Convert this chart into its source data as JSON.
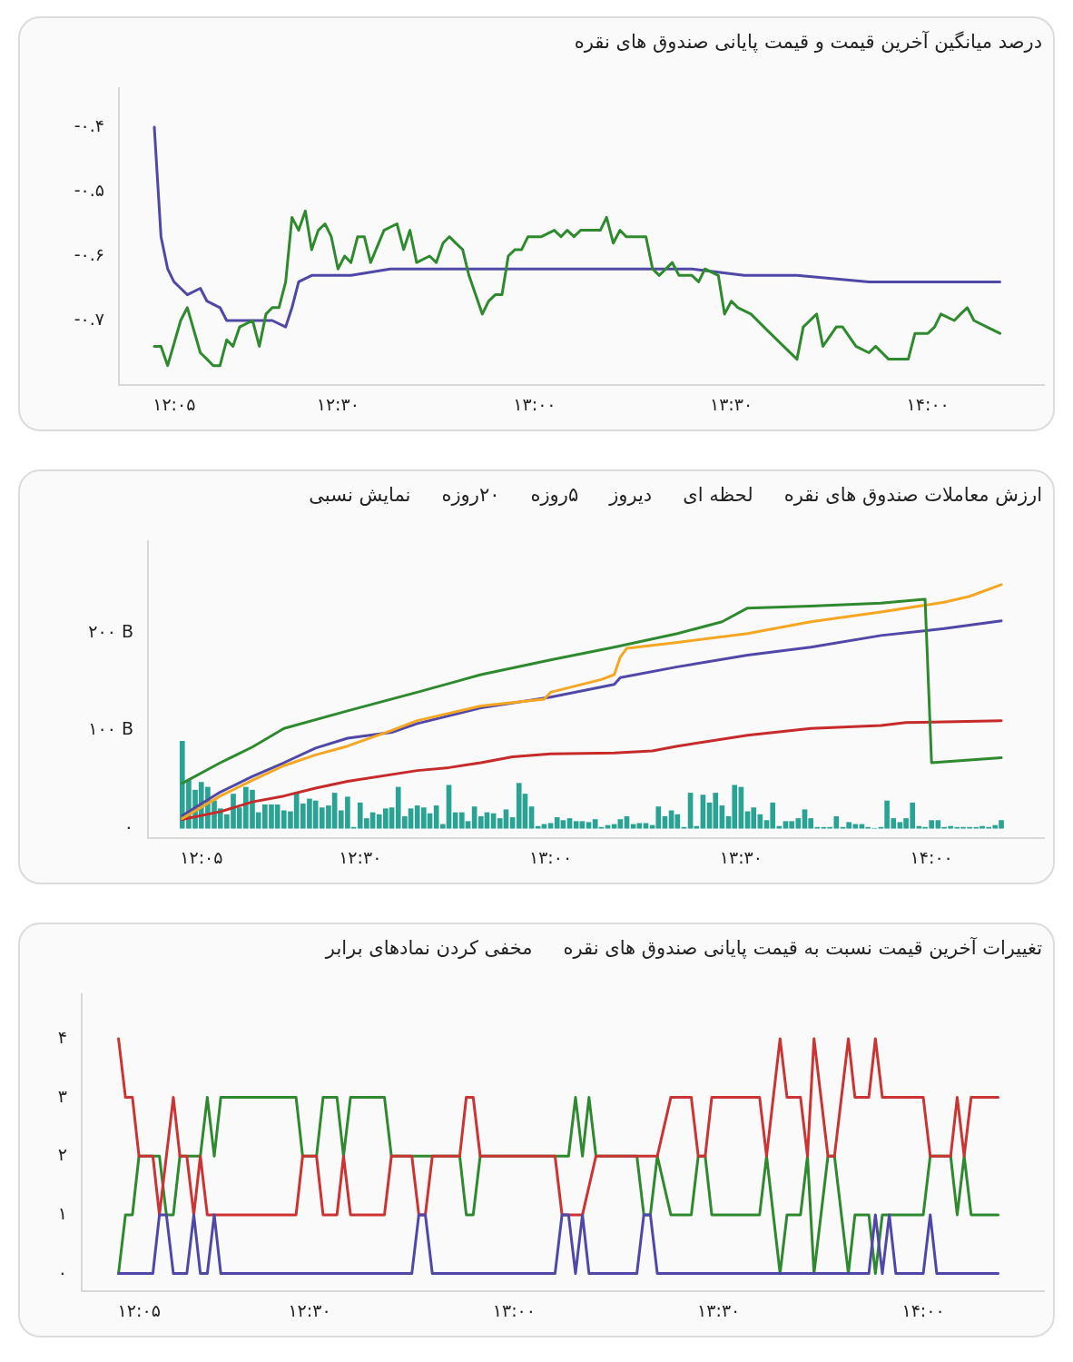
{
  "chart_data": [
    {
      "type": "line",
      "title": "درصد میانگین آخرین قیمت و قیمت پایانی صندوق های نقره",
      "marker": "none",
      "xlim": [
        11.943,
        14.295
      ],
      "xticks": [
        {
          "value": 12.0833,
          "label": "۱۲:۰۵"
        },
        {
          "value": 12.5,
          "label": "۱۲:۳۰"
        },
        {
          "value": 13,
          "label": "۱۳:۰۰"
        },
        {
          "value": 13.5,
          "label": "۱۳:۳۰"
        },
        {
          "value": 14,
          "label": "۱۴:۰۰"
        }
      ],
      "ylim": [
        -0.8,
        -0.34
      ],
      "yticks": [
        {
          "value": -0.7,
          "label": "-۰.۷"
        },
        {
          "value": -0.6,
          "label": "-۰.۶"
        },
        {
          "value": -0.5,
          "label": "-۰.۵"
        },
        {
          "value": -0.4,
          "label": "-۰.۴"
        }
      ],
      "series": [
        {
          "color": "#2f8a2f",
          "x": [
            12.033,
            12.05,
            12.067,
            12.1,
            12.117,
            12.15,
            12.167,
            12.183,
            12.2,
            12.217,
            12.233,
            12.25,
            12.283,
            12.3,
            12.317,
            12.333,
            12.35,
            12.367,
            12.383,
            12.4,
            12.417,
            12.433,
            12.45,
            12.467,
            12.483,
            12.5,
            12.517,
            12.533,
            12.55,
            12.567,
            12.583,
            12.617,
            12.65,
            12.667,
            12.683,
            12.7,
            12.733,
            12.75,
            12.767,
            12.783,
            12.8,
            12.817,
            12.833,
            12.85,
            12.867,
            12.883,
            12.9,
            12.917,
            12.933,
            12.95,
            12.967,
            12.983,
            13.017,
            13.05,
            13.067,
            13.083,
            13.1,
            13.117,
            13.133,
            13.167,
            13.183,
            13.2,
            13.217,
            13.233,
            13.25,
            13.283,
            13.3,
            13.317,
            13.35,
            13.367,
            13.4,
            13.417,
            13.433,
            13.467,
            13.483,
            13.5,
            13.517,
            13.55,
            13.583,
            13.633,
            13.667,
            13.683,
            13.717,
            13.733,
            13.767,
            13.783,
            13.817,
            13.85,
            13.867,
            13.9,
            13.933,
            13.95,
            13.967,
            14.0,
            14.017,
            14.033,
            14.067,
            14.083,
            14.1,
            14.117,
            14.15,
            14.183
          ],
          "values": [
            -0.74,
            -0.74,
            -0.77,
            -0.7,
            -0.68,
            -0.75,
            -0.76,
            -0.77,
            -0.77,
            -0.73,
            -0.74,
            -0.71,
            -0.7,
            -0.74,
            -0.69,
            -0.68,
            -0.68,
            -0.64,
            -0.54,
            -0.56,
            -0.53,
            -0.59,
            -0.56,
            -0.55,
            -0.57,
            -0.62,
            -0.6,
            -0.61,
            -0.57,
            -0.57,
            -0.61,
            -0.56,
            -0.55,
            -0.59,
            -0.56,
            -0.61,
            -0.6,
            -0.61,
            -0.58,
            -0.57,
            -0.58,
            -0.59,
            -0.63,
            -0.66,
            -0.69,
            -0.67,
            -0.66,
            -0.66,
            -0.6,
            -0.59,
            -0.59,
            -0.57,
            -0.57,
            -0.56,
            -0.57,
            -0.56,
            -0.57,
            -0.56,
            -0.56,
            -0.56,
            -0.54,
            -0.58,
            -0.56,
            -0.57,
            -0.57,
            -0.57,
            -0.62,
            -0.63,
            -0.61,
            -0.63,
            -0.63,
            -0.64,
            -0.62,
            -0.63,
            -0.69,
            -0.67,
            -0.68,
            -0.69,
            -0.71,
            -0.74,
            -0.76,
            -0.71,
            -0.69,
            -0.74,
            -0.71,
            -0.71,
            -0.74,
            -0.75,
            -0.74,
            -0.76,
            -0.76,
            -0.76,
            -0.72,
            -0.72,
            -0.71,
            -0.69,
            -0.7,
            -0.69,
            -0.68,
            -0.7,
            -0.71,
            -0.72
          ]
        },
        {
          "color": "#4f48a6",
          "x": [
            12.033,
            12.05,
            12.067,
            12.083,
            12.1,
            12.117,
            12.15,
            12.167,
            12.2,
            12.217,
            12.25,
            12.283,
            12.317,
            12.333,
            12.367,
            12.383,
            12.4,
            12.433,
            12.5,
            12.533,
            12.633,
            12.8,
            12.933,
            13.25,
            13.4,
            13.533,
            13.667,
            13.85,
            14.067,
            14.183
          ],
          "values": [
            -0.4,
            -0.57,
            -0.62,
            -0.64,
            -0.65,
            -0.66,
            -0.65,
            -0.67,
            -0.68,
            -0.7,
            -0.7,
            -0.7,
            -0.7,
            -0.7,
            -0.71,
            -0.68,
            -0.64,
            -0.63,
            -0.63,
            -0.63,
            -0.62,
            -0.62,
            -0.62,
            -0.62,
            -0.62,
            -0.63,
            -0.63,
            -0.64,
            -0.64,
            -0.64
          ]
        }
      ]
    },
    {
      "type": "line",
      "title": "ارزش معاملات صندوق های نقره",
      "annotations": [
        "لحظه ای",
        "دیروز",
        "۵روزه",
        "۲۰روزه",
        "نمایش نسبی"
      ],
      "marker": "none",
      "xlim": [
        11.943,
        14.295
      ],
      "xticks": [
        {
          "value": 12.0833,
          "label": "۱۲:۰۵"
        },
        {
          "value": 12.5,
          "label": "۱۲:۳۰"
        },
        {
          "value": 13,
          "label": "۱۳:۰۰"
        },
        {
          "value": 13.5,
          "label": "۱۳:۳۰"
        },
        {
          "value": 14,
          "label": "۱۴:۰۰"
        }
      ],
      "ylim": [
        -10,
        293
      ],
      "yticks": [
        {
          "value": 0,
          "label": "۰"
        },
        {
          "value": 100,
          "label": "۱۰۰ B"
        },
        {
          "value": 200,
          "label": "۲۰۰ B"
        }
      ],
      "series": [
        {
          "color": "#2f8a2f",
          "x": [
            12.033,
            12.133,
            12.217,
            12.3,
            12.467,
            12.65,
            12.817,
            13.0,
            13.167,
            13.333,
            13.45,
            13.517,
            13.683,
            13.867,
            13.983,
            14.0,
            14.183
          ],
          "values": [
            46,
            67,
            83,
            102,
            120,
            139,
            157,
            172,
            185,
            199,
            211,
            225,
            227,
            230,
            234,
            67,
            72
          ]
        },
        {
          "color": "#f5a623",
          "x": [
            12.033,
            12.133,
            12.217,
            12.3,
            12.383,
            12.467,
            12.583,
            12.65,
            12.817,
            12.983,
            13.0,
            13.133,
            13.167,
            13.183,
            13.2,
            13.333,
            13.517,
            13.683,
            13.867,
            14.033,
            14.1,
            14.183
          ],
          "values": [
            10,
            33,
            49,
            64,
            75,
            84,
            100,
            110,
            125,
            132,
            139,
            152,
            157,
            175,
            184,
            190,
            199,
            211,
            221,
            231,
            237,
            249
          ]
        },
        {
          "color": "#5048a8",
          "x": [
            12.033,
            12.133,
            12.217,
            12.3,
            12.383,
            12.467,
            12.583,
            12.65,
            12.817,
            13.0,
            13.167,
            13.183,
            13.333,
            13.517,
            13.683,
            13.867,
            14.033,
            14.183
          ],
          "values": [
            13,
            37,
            53,
            67,
            82,
            92,
            98,
            107,
            123,
            134,
            147,
            154,
            165,
            177,
            185,
            197,
            204,
            212
          ]
        },
        {
          "color": "#c62a2a",
          "x": [
            12.033,
            12.133,
            12.217,
            12.3,
            12.383,
            12.467,
            12.65,
            12.733,
            12.817,
            12.9,
            13.0,
            13.167,
            13.267,
            13.333,
            13.517,
            13.683,
            13.867,
            13.933,
            14.183
          ],
          "values": [
            9,
            17,
            27,
            33,
            41,
            48,
            59,
            62,
            67,
            73,
            76,
            77,
            79,
            84,
            95,
            102,
            105,
            108,
            110
          ]
        },
        {
          "type": "bar",
          "color": "#2ba394",
          "x": [
            12.033,
            12.05,
            12.067,
            12.083,
            12.1,
            12.117,
            12.133,
            12.15,
            12.167,
            12.183,
            12.2,
            12.217,
            12.233,
            12.25,
            12.267,
            12.283,
            12.3,
            12.317,
            12.333,
            12.35,
            12.367,
            12.383,
            12.4,
            12.417,
            12.433,
            12.45,
            12.467,
            12.483,
            12.5,
            12.517,
            12.533,
            12.55,
            12.567,
            12.583,
            12.6,
            12.617,
            12.633,
            12.65,
            12.667,
            12.683,
            12.7,
            12.717,
            12.733,
            12.75,
            12.767,
            12.783,
            12.8,
            12.817,
            12.833,
            12.85,
            12.867,
            12.883,
            12.9,
            12.917,
            12.933,
            12.95,
            12.967,
            12.983,
            13.0,
            13.017,
            13.033,
            13.05,
            13.067,
            13.083,
            13.1,
            13.117,
            13.133,
            13.15,
            13.167,
            13.183,
            13.2,
            13.217,
            13.233,
            13.25,
            13.267,
            13.283,
            13.3,
            13.317,
            13.333,
            13.35,
            13.367,
            13.383,
            13.4,
            13.417,
            13.433,
            13.45,
            13.467,
            13.483,
            13.5,
            13.517,
            13.533,
            13.55,
            13.567,
            13.583,
            13.6,
            13.617,
            13.633,
            13.65,
            13.667,
            13.683,
            13.7,
            13.717,
            13.733,
            13.75,
            13.767,
            13.783,
            13.8,
            13.817,
            13.833,
            13.85,
            13.867,
            13.883,
            13.9,
            13.917,
            13.933,
            13.95,
            13.967,
            13.983,
            14.0,
            14.017,
            14.033,
            14.05,
            14.067,
            14.083,
            14.1,
            14.117,
            14.133,
            14.15,
            14.167,
            14.183
          ],
          "values": [
            89,
            49,
            39,
            47,
            42,
            28,
            20,
            14,
            35,
            21,
            42,
            39,
            16,
            24,
            24,
            24,
            18,
            17,
            36,
            25,
            30,
            28,
            21,
            23,
            36,
            18,
            32,
            1,
            26,
            10,
            16,
            14,
            20,
            21,
            42,
            12,
            20,
            23,
            21,
            15,
            23,
            4,
            44,
            16,
            16,
            7,
            22,
            12,
            16,
            15,
            10,
            19,
            11,
            46,
            35,
            22,
            2,
            4,
            5,
            11,
            8,
            10,
            7,
            7,
            6,
            9,
            1,
            3,
            4,
            9,
            12,
            4,
            5,
            5,
            3,
            22,
            12,
            18,
            14,
            1,
            36,
            2,
            34,
            26,
            36,
            23,
            12,
            44,
            42,
            17,
            21,
            14,
            8,
            26,
            2,
            7,
            7,
            10,
            19,
            10,
            1,
            1,
            1,
            12,
            1,
            6,
            4,
            4,
            1,
            0,
            1,
            28,
            10,
            6,
            10,
            26,
            2,
            1,
            8,
            8,
            1,
            2,
            1,
            1,
            1,
            1,
            2,
            1,
            3,
            8
          ]
        }
      ]
    },
    {
      "type": "line",
      "title": "تغییرات آخرین قیمت نسبت به قیمت پایانی صندوق های نقره",
      "annotations": [
        "مخفی کردن نمادهای برابر"
      ],
      "marker": "none",
      "xlim": [
        11.943,
        14.295
      ],
      "xticks": [
        {
          "value": 12.0833,
          "label": "۱۲:۰۵"
        },
        {
          "value": 12.5,
          "label": "۱۲:۳۰"
        },
        {
          "value": 13,
          "label": "۱۳:۰۰"
        },
        {
          "value": 13.5,
          "label": "۱۳:۳۰"
        },
        {
          "value": 14,
          "label": "۱۴:۰۰"
        }
      ],
      "ylim": [
        -0.3,
        4.75
      ],
      "yticks": [
        {
          "value": 0,
          "label": "۰"
        },
        {
          "value": 1,
          "label": "۱"
        },
        {
          "value": 2,
          "label": "۲"
        },
        {
          "value": 3,
          "label": "۳"
        },
        {
          "value": 4,
          "label": "۴"
        }
      ],
      "series": [
        {
          "color": "#5048a8",
          "x": [
            12.033,
            12.117,
            12.133,
            12.15,
            12.167,
            12.2,
            12.217,
            12.233,
            12.25,
            12.267,
            12.283,
            12.75,
            12.767,
            12.783,
            12.8,
            13.1,
            13.117,
            13.133,
            13.15,
            13.167,
            13.183,
            13.3,
            13.317,
            13.333,
            13.35,
            13.867,
            13.883,
            13.9,
            13.917,
            13.933,
            14.0,
            14.017,
            14.033,
            14.183
          ],
          "values": [
            0,
            0,
            1,
            1,
            0,
            0,
            1,
            0,
            0,
            1,
            0,
            0,
            1,
            1,
            0,
            0,
            1,
            1,
            0,
            1,
            0,
            0,
            1,
            1,
            0,
            0,
            1,
            0,
            1,
            0,
            0,
            1,
            0,
            0
          ]
        },
        {
          "color": "#cc3333",
          "x": [
            12.033,
            12.05,
            12.067,
            12.083,
            12.117,
            12.133,
            12.167,
            12.183,
            12.2,
            12.217,
            12.233,
            12.25,
            12.467,
            12.483,
            12.517,
            12.533,
            12.567,
            12.583,
            12.6,
            12.683,
            12.7,
            12.75,
            12.767,
            12.783,
            12.8,
            12.867,
            12.883,
            12.9,
            12.917,
            13.1,
            13.117,
            13.167,
            13.2,
            13.35,
            13.383,
            13.433,
            13.45,
            13.467,
            13.483,
            13.6,
            13.617,
            13.65,
            13.667,
            13.7,
            13.717,
            13.733,
            13.767,
            13.783,
            13.817,
            13.833,
            13.867,
            13.883,
            13.9,
            14.0,
            14.017,
            14.067,
            14.083,
            14.1,
            14.117,
            14.183
          ],
          "values": [
            4,
            3,
            3,
            2,
            2,
            1,
            3,
            2,
            2,
            1,
            2,
            1,
            1,
            2,
            2,
            1,
            1,
            2,
            1,
            1,
            2,
            2,
            1,
            1,
            2,
            2,
            3,
            3,
            2,
            2,
            1,
            1,
            2,
            2,
            3,
            3,
            2,
            2,
            3,
            3,
            2,
            4,
            3,
            3,
            2,
            4,
            2,
            2,
            4,
            3,
            3,
            4,
            3,
            3,
            2,
            2,
            3,
            2,
            3,
            3
          ]
        },
        {
          "color": "#2f8a2f",
          "x": [
            12.033,
            12.05,
            12.067,
            12.083,
            12.133,
            12.15,
            12.167,
            12.183,
            12.233,
            12.25,
            12.267,
            12.283,
            12.467,
            12.483,
            12.517,
            12.533,
            12.567,
            12.583,
            12.6,
            12.683,
            12.7,
            12.867,
            12.883,
            12.9,
            12.917,
            13.133,
            13.15,
            13.167,
            13.183,
            13.2,
            13.3,
            13.317,
            13.333,
            13.35,
            13.383,
            13.433,
            13.45,
            13.467,
            13.483,
            13.6,
            13.617,
            13.65,
            13.667,
            13.7,
            13.717,
            13.733,
            13.767,
            13.783,
            13.817,
            13.833,
            13.867,
            13.883,
            13.9,
            14.0,
            14.017,
            14.067,
            14.083,
            14.1,
            14.117,
            14.183
          ],
          "values": [
            0,
            1,
            1,
            2,
            2,
            1,
            1,
            2,
            2,
            3,
            2,
            3,
            3,
            2,
            2,
            3,
            3,
            2,
            3,
            3,
            2,
            2,
            1,
            1,
            2,
            2,
            3,
            2,
            3,
            2,
            2,
            1,
            1,
            2,
            1,
            1,
            2,
            2,
            1,
            1,
            2,
            0,
            1,
            1,
            2,
            0,
            2,
            2,
            0,
            1,
            1,
            0,
            1,
            1,
            2,
            2,
            1,
            2,
            1,
            1
          ]
        }
      ]
    }
  ]
}
